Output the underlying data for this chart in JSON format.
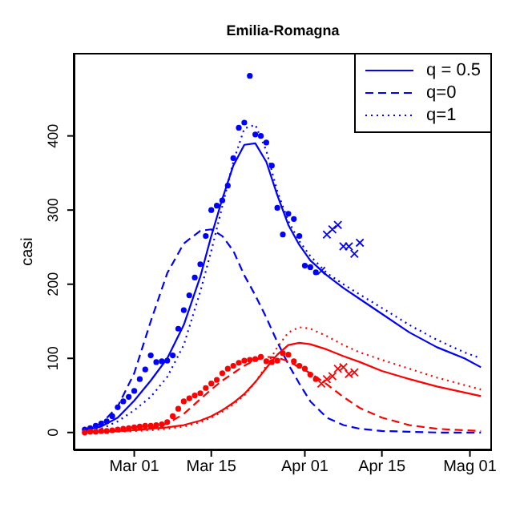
{
  "chart_data": {
    "type": "line",
    "title": "Emilia-Romagna",
    "ylabel": "casi",
    "x": [
      "--02-20",
      "--02-23",
      "--02-26",
      "--03-01",
      "--03-04",
      "--03-07",
      "--03-10",
      "--03-13",
      "--03-15",
      "--03-17",
      "--03-19",
      "--03-21",
      "--03-23",
      "--03-25",
      "--03-27",
      "--03-29",
      "--03-31",
      "--04-02",
      "--04-05",
      "--04-08",
      "--04-11",
      "--04-15",
      "--04-20",
      "--04-25",
      "--04-30",
      "--05-03"
    ],
    "xlim": [
      "--02-18",
      "--05-05"
    ],
    "xticks": [
      {
        "value": "--03-01",
        "label": "Mar 01"
      },
      {
        "value": "--03-15",
        "label": "Mar 15"
      },
      {
        "value": "--04-01",
        "label": "Apr 01"
      },
      {
        "value": "--04-15",
        "label": "Apr 15"
      },
      {
        "value": "--05-01",
        "label": "Mag 01"
      }
    ],
    "ylim": [
      -24,
      512
    ],
    "yticks": [
      0,
      100,
      200,
      300,
      400
    ],
    "grid": false,
    "legend": "top right",
    "marker": "none",
    "series": [
      {
        "type": "scatter",
        "marker": "circle",
        "color": "#0000ff",
        "x": [
          "--02-20",
          "--02-21",
          "--02-22",
          "--02-23",
          "--02-24",
          "--02-25",
          "--02-26",
          "--02-27",
          "--02-28",
          "--03-01",
          "--03-02",
          "--03-03",
          "--03-04",
          "--03-05",
          "--03-06",
          "--03-07",
          "--03-08",
          "--03-09",
          "--03-10",
          "--03-11",
          "--03-12",
          "--03-13",
          "--03-14",
          "--03-15",
          "--03-16",
          "--03-17",
          "--03-18",
          "--03-19",
          "--03-20",
          "--03-21",
          "--03-22",
          "--03-23",
          "--03-24",
          "--03-25",
          "--03-26",
          "--03-27",
          "--03-28",
          "--03-29",
          "--03-30",
          "--03-31",
          "--04-01",
          "--04-02",
          "--04-03"
        ],
        "values": [
          4,
          6,
          9,
          12,
          15,
          22,
          34,
          42,
          48,
          56,
          72,
          85,
          104,
          95,
          96,
          97,
          104,
          140,
          165,
          185,
          209,
          227,
          265,
          300,
          306,
          313,
          333,
          370,
          411,
          418,
          481,
          402,
          400,
          391,
          360,
          303,
          267,
          295,
          288,
          265,
          225,
          223,
          216
        ]
      },
      {
        "type": "scatter",
        "marker": "cross",
        "color": "#0000ff",
        "x": [
          "--04-04",
          "--04-05",
          "--04-06",
          "--04-07",
          "--04-08",
          "--04-09",
          "--04-10",
          "--04-11"
        ],
        "values": [
          218,
          267,
          274,
          280,
          251,
          251,
          241,
          256
        ]
      },
      {
        "type": "scatter",
        "marker": "circle",
        "color": "#ff0000",
        "x": [
          "--02-20",
          "--02-21",
          "--02-22",
          "--02-23",
          "--02-24",
          "--02-25",
          "--02-26",
          "--02-27",
          "--02-28",
          "--03-01",
          "--03-02",
          "--03-03",
          "--03-04",
          "--03-05",
          "--03-06",
          "--03-07",
          "--03-08",
          "--03-09",
          "--03-10",
          "--03-11",
          "--03-12",
          "--03-13",
          "--03-14",
          "--03-15",
          "--03-16",
          "--03-17",
          "--03-18",
          "--03-19",
          "--03-20",
          "--03-21",
          "--03-22",
          "--03-23",
          "--03-24",
          "--03-25",
          "--03-26",
          "--03-27",
          "--03-28",
          "--03-29",
          "--03-30",
          "--03-31",
          "--04-01",
          "--04-02",
          "--04-03"
        ],
        "values": [
          0,
          1,
          1,
          2,
          2,
          3,
          4,
          5,
          6,
          7,
          8,
          9,
          9,
          10,
          11,
          14,
          22,
          32,
          42,
          46,
          50,
          53,
          60,
          66,
          71,
          80,
          86,
          90,
          94,
          97,
          98,
          99,
          102,
          96,
          95,
          97,
          107,
          105,
          96,
          90,
          86,
          78,
          72
        ]
      },
      {
        "type": "scatter",
        "marker": "cross",
        "color": "#ff0000",
        "x": [
          "--04-04",
          "--04-05",
          "--04-06",
          "--04-07",
          "--04-08",
          "--04-09",
          "--04-10"
        ],
        "values": [
          66,
          72,
          76,
          86,
          88,
          79,
          81
        ]
      },
      {
        "name": "q = 0.5",
        "line_style": "solid",
        "color": "#0000ff",
        "values": [
          3,
          8,
          20,
          43,
          70,
          100,
          145,
          210,
          265,
          315,
          360,
          388,
          390,
          365,
          320,
          280,
          253,
          232,
          212,
          195,
          180,
          160,
          135,
          115,
          100,
          88
        ]
      },
      {
        "name": "q=0",
        "line_style": "dashed",
        "color": "#0000ff",
        "values": [
          4,
          12,
          35,
          80,
          150,
          215,
          255,
          272,
          274,
          265,
          245,
          212,
          185,
          155,
          122,
          92,
          66,
          42,
          20,
          10,
          5,
          2,
          1,
          0,
          0,
          0
        ]
      },
      {
        "name": "q=1",
        "line_style": "dotted",
        "color": "#0000ff",
        "values": [
          2,
          5,
          15,
          30,
          48,
          75,
          118,
          190,
          245,
          305,
          365,
          410,
          415,
          380,
          325,
          285,
          258,
          238,
          215,
          200,
          186,
          168,
          145,
          125,
          108,
          100
        ]
      },
      {
        "line_style": "solid",
        "color": "#ff0000",
        "values": [
          1,
          1,
          2,
          3,
          5,
          7,
          10,
          16,
          22,
          30,
          40,
          52,
          68,
          87,
          105,
          118,
          121,
          119,
          112,
          103,
          95,
          83,
          72,
          62,
          54,
          49
        ]
      },
      {
        "line_style": "dashed",
        "color": "#ff0000",
        "values": [
          1,
          1,
          2,
          3,
          6,
          12,
          25,
          45,
          58,
          70,
          80,
          90,
          98,
          102,
          101,
          96,
          88,
          80,
          65,
          48,
          33,
          20,
          10,
          5,
          3,
          2
        ]
      },
      {
        "line_style": "dotted",
        "color": "#ff0000",
        "values": [
          0,
          1,
          1,
          2,
          3,
          5,
          8,
          14,
          20,
          28,
          38,
          50,
          68,
          90,
          115,
          135,
          142,
          140,
          130,
          118,
          108,
          98,
          86,
          74,
          64,
          58
        ]
      }
    ]
  }
}
